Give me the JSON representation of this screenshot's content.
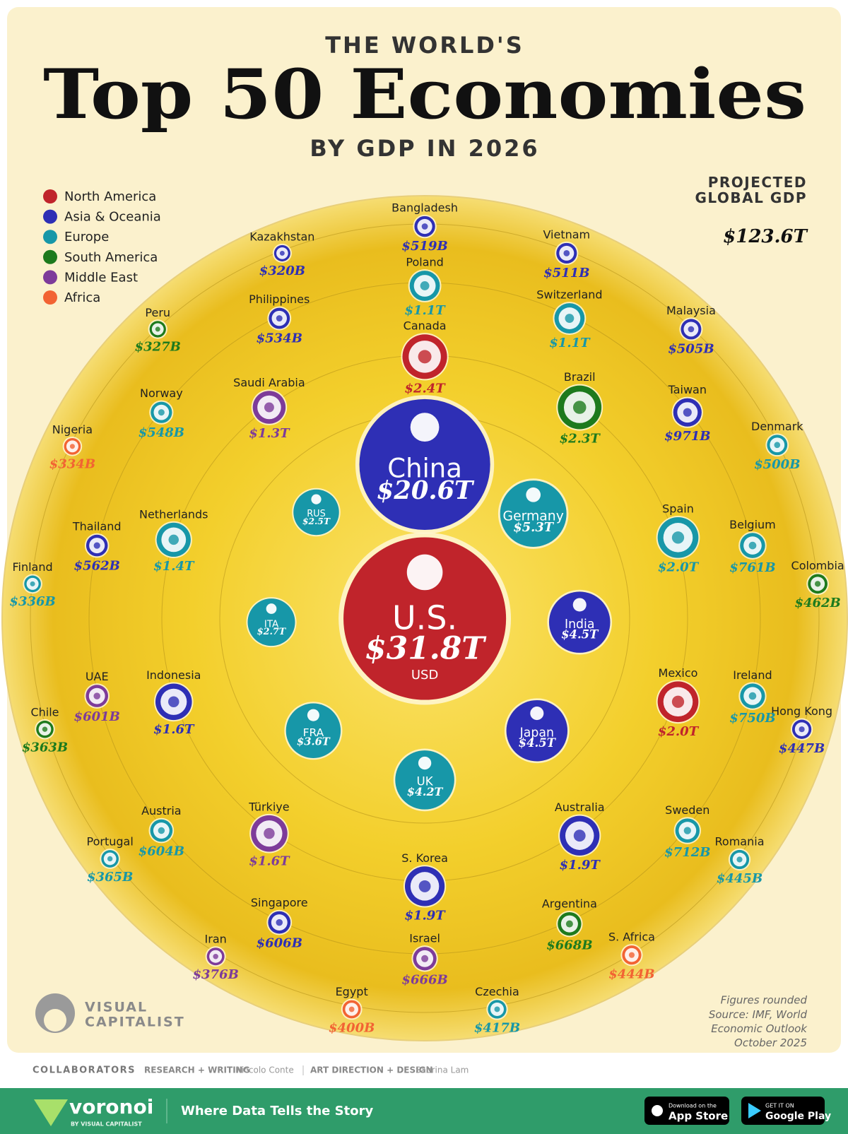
{
  "chart_data": {
    "type": "bubble",
    "kicker": "THE WORLD'S",
    "title": "Top 50 Economies",
    "subtitle": "BY GDP IN 2026",
    "total_label": "PROJECTED GLOBAL GDP",
    "total_value": 123600,
    "total_value_label": "$123.6T",
    "currency_note": "USD",
    "note": "Figures rounded",
    "source": "Source: IMF, World Economic Outlook October 2025",
    "series": [
      {
        "name": "North America",
        "color": "#c0242b",
        "names": [
          "U.S.",
          "Canada",
          "Mexico"
        ],
        "values": [
          31800,
          2400,
          2000
        ],
        "value_labels": [
          "$31.8T",
          "$2.4T",
          "$2.0T"
        ]
      },
      {
        "name": "Asia & Oceania",
        "color": "#2e2fb5",
        "names": [
          "China",
          "India",
          "Japan",
          "S. Korea",
          "Australia",
          "Indonesia",
          "Taiwan",
          "Singapore",
          "Thailand",
          "Philippines",
          "Bangladesh",
          "Vietnam",
          "Malaysia",
          "Hong Kong",
          "Kazakhstan"
        ],
        "values": [
          20600,
          4500,
          4500,
          1900,
          1900,
          1600,
          971,
          606,
          562,
          534,
          519,
          511,
          505,
          447,
          320
        ],
        "value_labels": [
          "$20.6T",
          "$4.5T",
          "$4.5T",
          "$1.9T",
          "$1.9T",
          "$1.6T",
          "$971B",
          "$606B",
          "$562B",
          "$534B",
          "$519B",
          "$511B",
          "$505B",
          "$447B",
          "$320B"
        ]
      },
      {
        "name": "Europe",
        "color": "#1797a8",
        "names": [
          "Germany",
          "UK",
          "FRA",
          "ITA",
          "RUS",
          "Spain",
          "Netherlands",
          "Poland",
          "Switzerland",
          "Belgium",
          "Ireland",
          "Sweden",
          "Austria",
          "Norway",
          "Denmark",
          "Romania",
          "Czechia",
          "Portugal",
          "Finland"
        ],
        "values": [
          5300,
          4200,
          3600,
          2700,
          2500,
          2000,
          1400,
          1100,
          1100,
          761,
          750,
          712,
          604,
          548,
          500,
          445,
          417,
          365,
          336
        ],
        "value_labels": [
          "$5.3T",
          "$4.2T",
          "$3.6T",
          "$2.7T",
          "$2.5T",
          "$2.0T",
          "$1.4T",
          "$1.1T",
          "$1.1T",
          "$761B",
          "$750B",
          "$712B",
          "$604B",
          "$548B",
          "$500B",
          "$445B",
          "$417B",
          "$365B",
          "$336B"
        ]
      },
      {
        "name": "South America",
        "color": "#1d7a1d",
        "names": [
          "Brazil",
          "Argentina",
          "Colombia",
          "Chile",
          "Peru"
        ],
        "values": [
          2300,
          668,
          462,
          363,
          327
        ],
        "value_labels": [
          "$2.3T",
          "$668B",
          "$462B",
          "$363B",
          "$327B"
        ]
      },
      {
        "name": "Middle East",
        "color": "#7d3b9a",
        "names": [
          "Türkiye",
          "Saudi Arabia",
          "Israel",
          "UAE",
          "Iran"
        ],
        "values": [
          1600,
          1300,
          666,
          601,
          376
        ],
        "value_labels": [
          "$1.6T",
          "$1.3T",
          "$666B",
          "$601B",
          "$376B"
        ]
      },
      {
        "name": "Africa",
        "color": "#f26333",
        "names": [
          "S. Africa",
          "Egypt",
          "Nigeria"
        ],
        "values": [
          444,
          400,
          334
        ],
        "value_labels": [
          "$444B",
          "$400B",
          "$334B"
        ]
      }
    ]
  },
  "logo": {
    "line1": "VISUAL",
    "line2": "CAPITALIST"
  },
  "credits": {
    "heading": "COLLABORATORS",
    "role1": "RESEARCH + WRITING",
    "person1": "Niccolo Conte",
    "role2": "ART DIRECTION + DESIGN",
    "person2": "Sabrina Lam"
  },
  "footer": {
    "brand": "voronoi",
    "brand_sub": "BY VISUAL CAPITALIST",
    "tagline": "Where Data Tells the Story",
    "apple_small": "Download on the",
    "apple_big": "App Store",
    "google_small": "GET IT ON",
    "google_big": "Google Play"
  }
}
